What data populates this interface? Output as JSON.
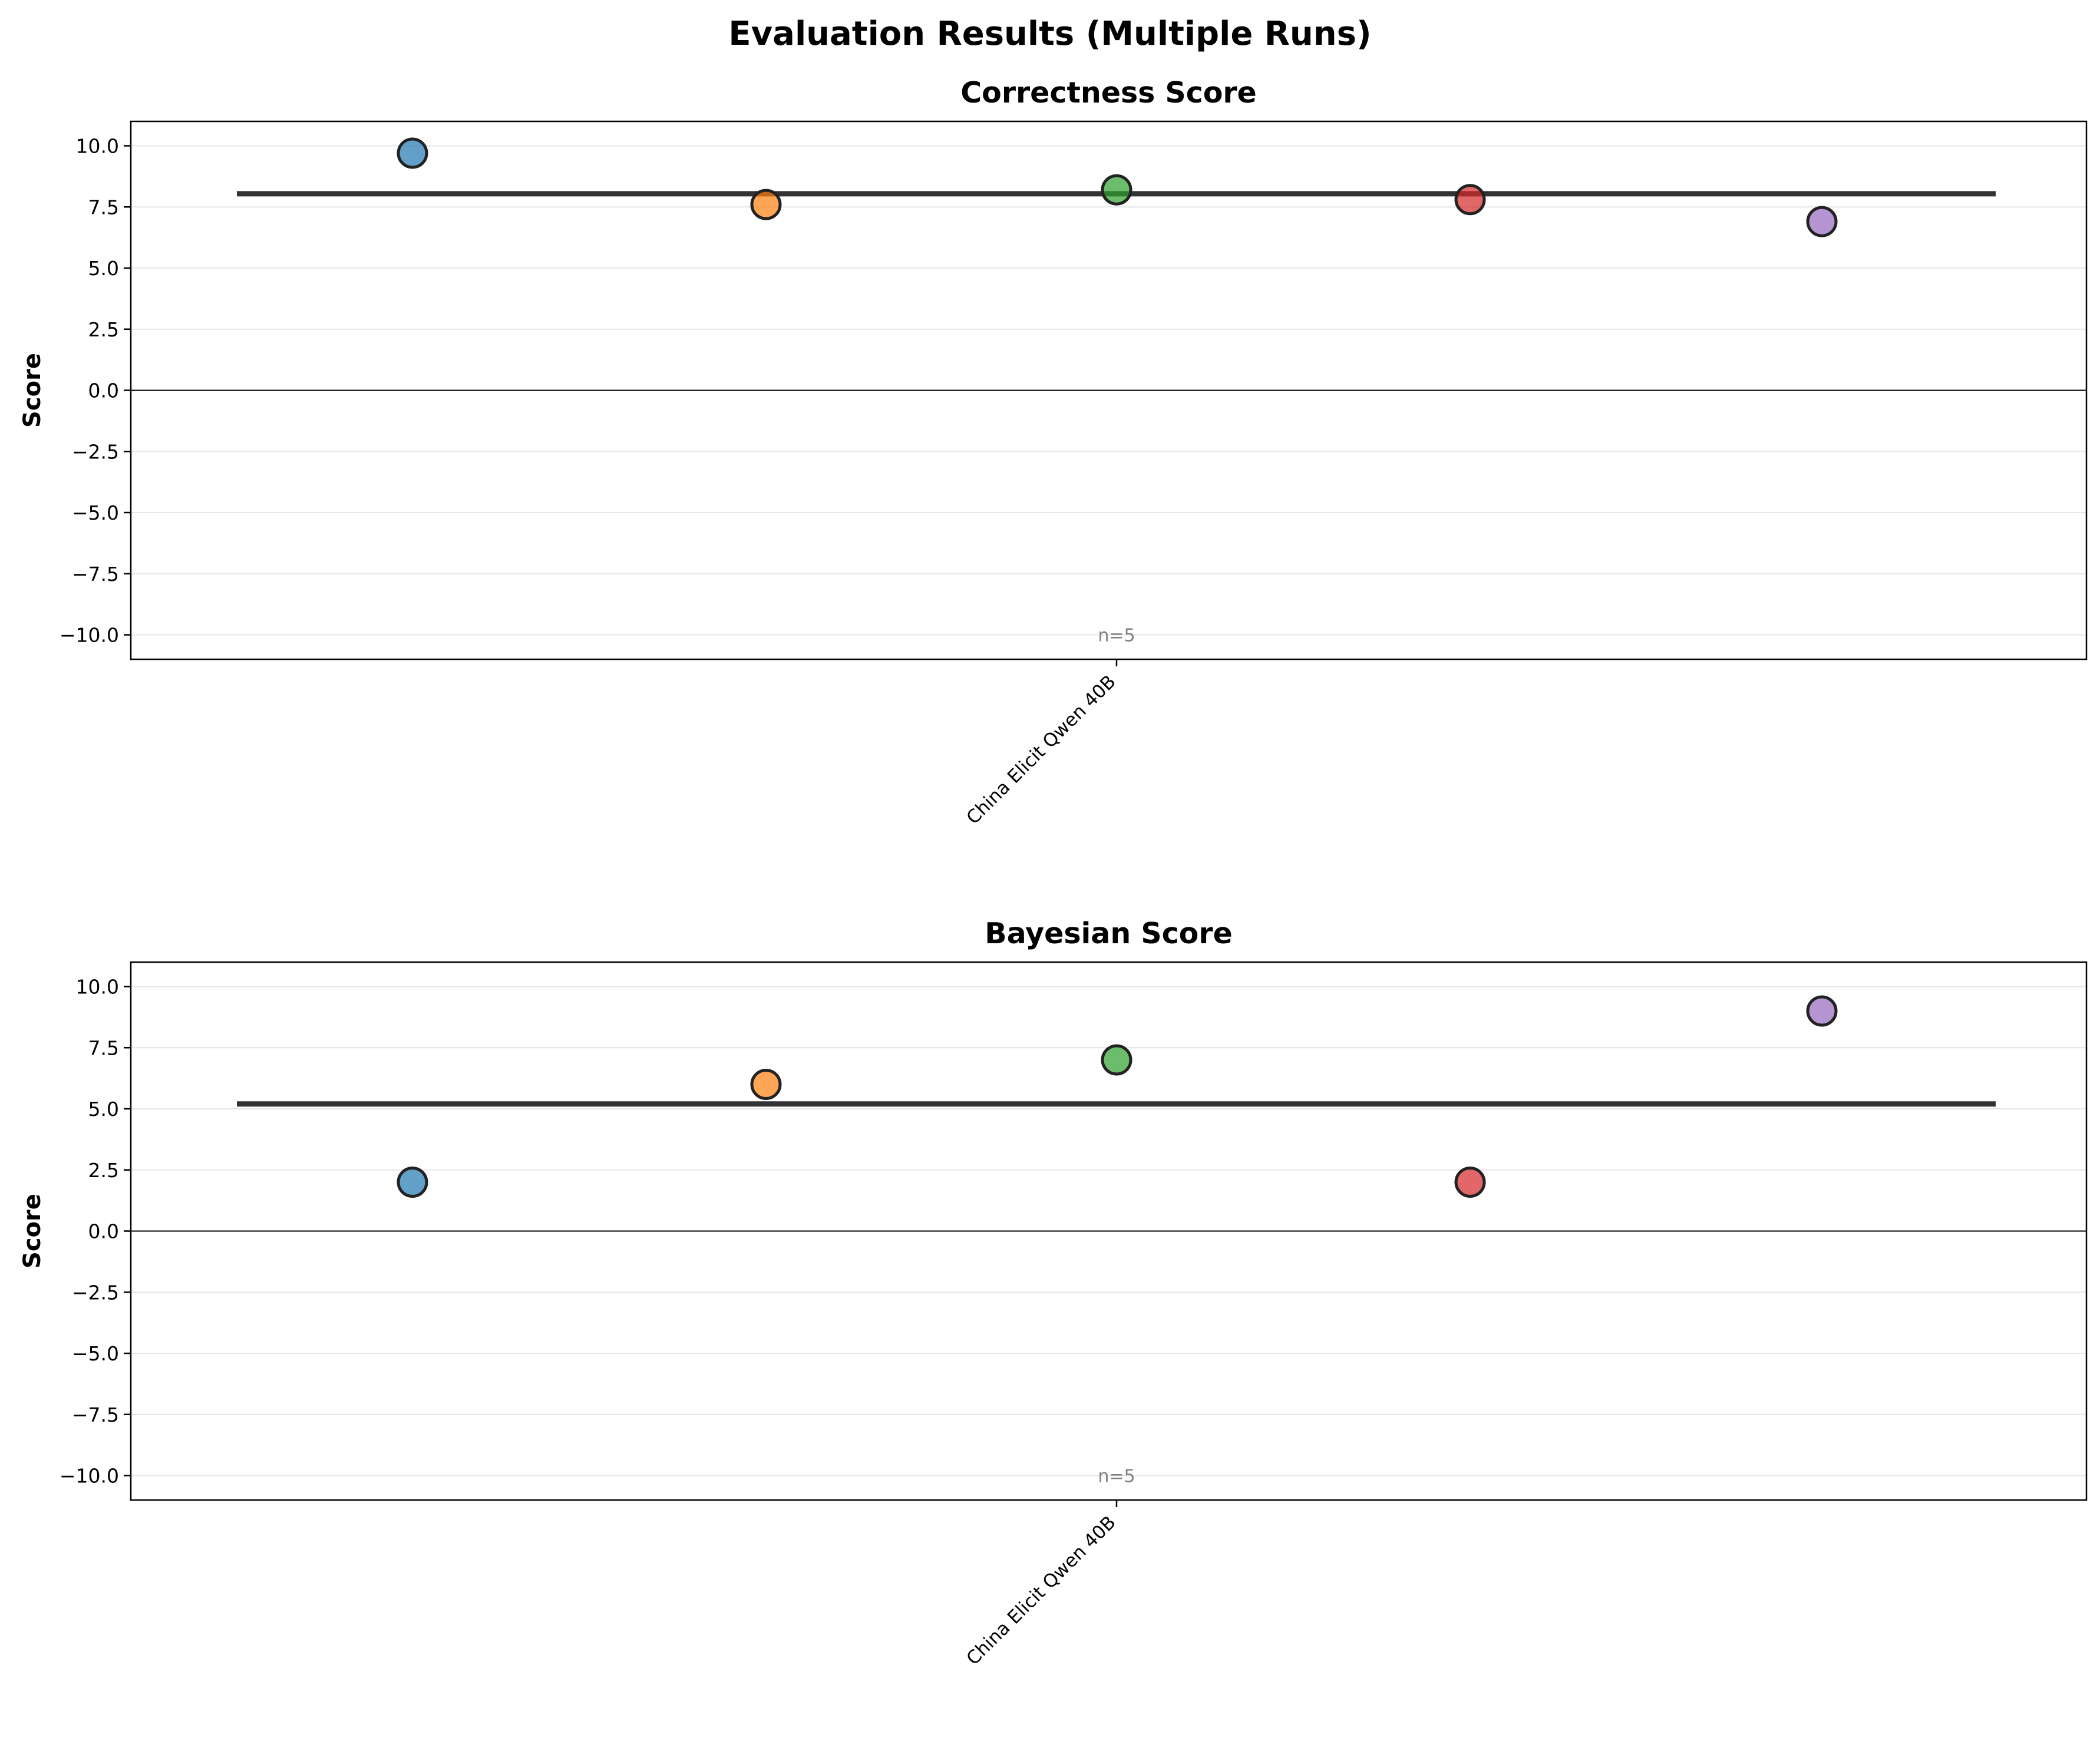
{
  "figure": {
    "title": "Evaluation Results (Multiple Runs)"
  },
  "colors": {
    "point_colors": [
      "#1f77b4",
      "#ff7f0e",
      "#2ca02c",
      "#d62728",
      "#9467bd"
    ],
    "mean_line": "#333333",
    "grid": "#e6e6e6"
  },
  "chart_data": [
    {
      "type": "scatter",
      "title": "Correctness Score",
      "ylabel": "Score",
      "xlabel": "",
      "categories": [
        "China Elicit Qwen 40B"
      ],
      "ylim": [
        -11,
        11
      ],
      "yticks": [
        -10.0,
        -7.5,
        -5.0,
        -2.5,
        0.0,
        2.5,
        5.0,
        7.5,
        10.0
      ],
      "ytick_labels": [
        "−10.0",
        "−7.5",
        "−5.0",
        "−2.5",
        "0.0",
        "2.5",
        "5.0",
        "7.5",
        "10.0"
      ],
      "grid": "y",
      "runs": [
        9.7,
        7.6,
        8.2,
        7.8,
        6.9
      ],
      "mean": 8.04,
      "n_label": "n=5"
    },
    {
      "type": "scatter",
      "title": "Bayesian Score",
      "ylabel": "Score",
      "xlabel": "",
      "categories": [
        "China Elicit Qwen 40B"
      ],
      "ylim": [
        -11,
        11
      ],
      "yticks": [
        -10.0,
        -7.5,
        -5.0,
        -2.5,
        0.0,
        2.5,
        5.0,
        7.5,
        10.0
      ],
      "ytick_labels": [
        "−10.0",
        "−7.5",
        "−5.0",
        "−2.5",
        "0.0",
        "2.5",
        "5.0",
        "7.5",
        "10.0"
      ],
      "grid": "y",
      "runs": [
        2.0,
        6.0,
        7.0,
        2.0,
        9.0
      ],
      "mean": 5.2,
      "n_label": "n=5"
    }
  ]
}
